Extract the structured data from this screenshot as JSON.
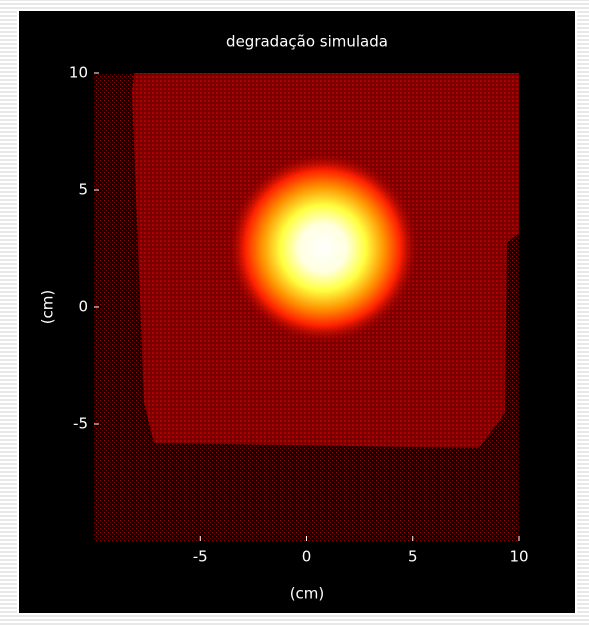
{
  "chart_data": {
    "type": "image",
    "title": "degradação simulada",
    "xlabel": "(cm)",
    "ylabel": "(cm)",
    "xlim": [
      -10,
      10
    ],
    "ylim": [
      -10,
      10
    ],
    "xticks": [
      -5,
      0,
      5,
      10
    ],
    "yticks": [
      -5,
      0,
      5,
      10
    ]
  }
}
